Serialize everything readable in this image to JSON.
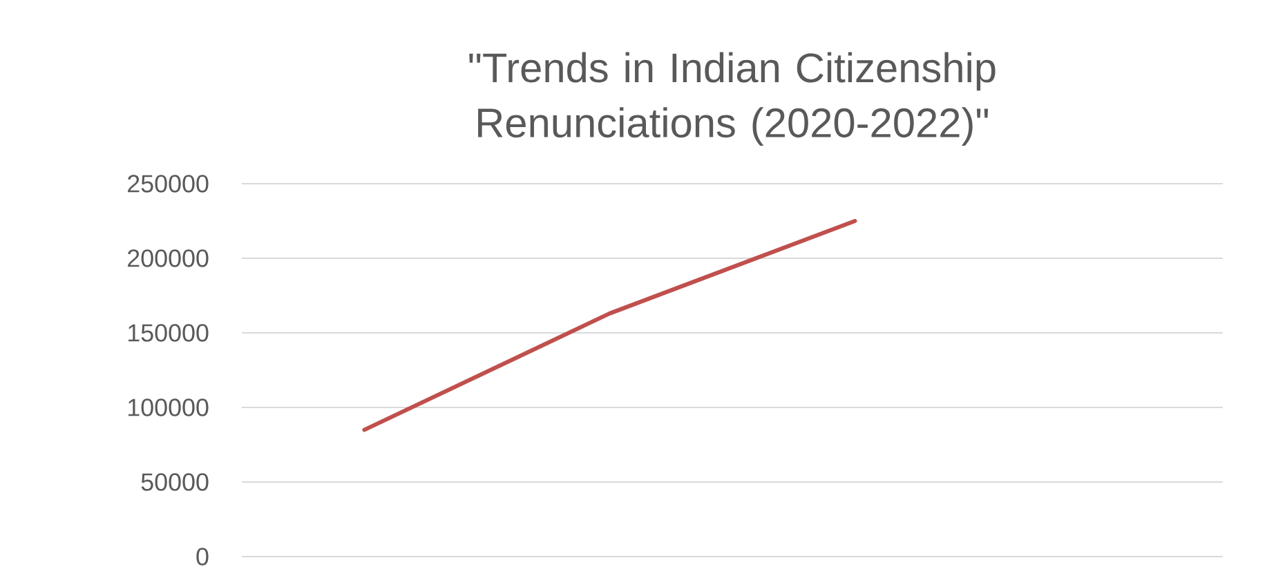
{
  "chart_data": {
    "type": "line",
    "title": "\"Trends in Indian Citizenship Renunciations (2020-2022)\"",
    "categories": [
      null,
      null,
      null,
      null
    ],
    "series": [
      {
        "color": "#c0504d",
        "values": [
          85000,
          163000,
          225000,
          null
        ]
      }
    ],
    "ylim": [
      0,
      250000
    ],
    "yticks": [
      0,
      50000,
      100000,
      150000,
      200000,
      250000
    ],
    "grid": "y"
  }
}
